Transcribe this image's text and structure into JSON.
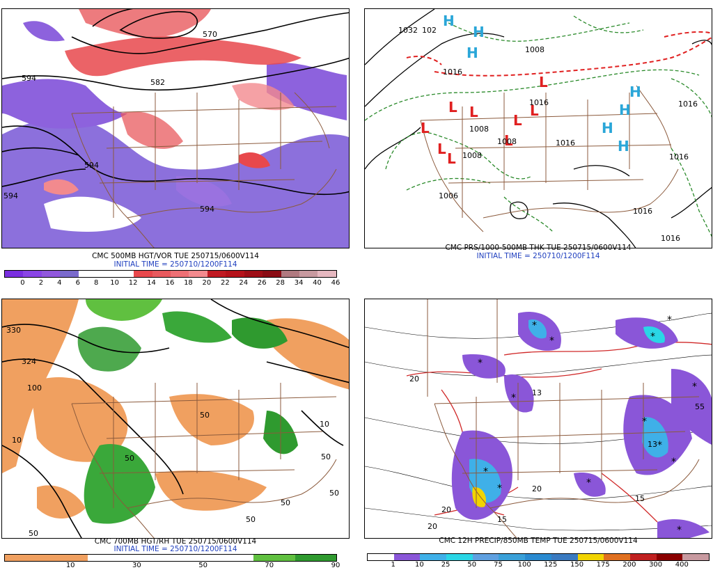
{
  "panels": [
    {
      "id": "p1",
      "caption": "CMC 500MB HGT/VOR TUE 250715/0600V114",
      "initial": "INITIAL TIME = 250710/1200F114",
      "contour_labels": [
        "594",
        "570",
        "582",
        "594",
        "594",
        "594"
      ],
      "colorbar": {
        "colors": [
          "#7a2fe0",
          "#8a45e6",
          "#9157dd",
          "#7a6acd",
          "#ffffff",
          "#ffffff",
          "#ffffff",
          "#e8484c",
          "#e85a5e",
          "#ee7075",
          "#f28a8e",
          "#c01a22",
          "#b5121a",
          "#9e0e16",
          "#8a0c14",
          "#b07a80",
          "#c89aa0",
          "#e6b8c0"
        ],
        "labels": [
          "0",
          "2",
          "4",
          "6",
          "8",
          "10",
          "12",
          "14",
          "16",
          "18",
          "20",
          "22",
          "24",
          "26",
          "28",
          "34",
          "40",
          "46"
        ]
      }
    },
    {
      "id": "p2",
      "caption": "CMC PRS/1000-500MB THK TUE 250715/0600V114",
      "initial": "INITIAL TIME = 250710/1200F114",
      "pressure_labels": [
        "1032",
        "102",
        "1016",
        "1008",
        "1008",
        "1008",
        "1016",
        "1016",
        "1016",
        "1016",
        "1016",
        "1016",
        "1006",
        "1008"
      ],
      "high_symbol": "H",
      "low_symbol": "L"
    },
    {
      "id": "p3",
      "caption": "CMC 700MB HGT/RH TUE 250715/0600V114",
      "initial": "INITIAL TIME = 250710/1200F114",
      "contour_labels": [
        "330",
        "324",
        "100",
        "10",
        "50",
        "50",
        "50",
        "10",
        "50",
        "50",
        "50",
        "50"
      ],
      "colorbar": {
        "colors": [
          "#f0a060",
          "#f0a060",
          "#ffffff",
          "#ffffff",
          "#ffffff",
          "#ffffff",
          "#60c040",
          "#2f9a2f"
        ],
        "labels": [
          "10",
          "30",
          "50",
          "70",
          "90"
        ]
      }
    },
    {
      "id": "p4",
      "caption": "CMC 12H PRECIP/850MB TEMP TUE 250715/0600V114",
      "initial": "",
      "contour_labels": [
        "20",
        "20",
        "20",
        "20",
        "15",
        "15",
        "55",
        "13",
        "13"
      ],
      "colorbar": {
        "colors": [
          "#ffffff",
          "#8a56d8",
          "#3fb0e8",
          "#2ad6e6",
          "#5fa0e0",
          "#3aa0d8",
          "#2a8ad0",
          "#3a7ac0",
          "#f2d400",
          "#e07020",
          "#c02020",
          "#8a0000",
          "#c89aa0"
        ],
        "labels": [
          "1",
          "10",
          "25",
          "50",
          "75",
          "100",
          "125",
          "150",
          "175",
          "200",
          "300",
          "400"
        ]
      }
    }
  ]
}
